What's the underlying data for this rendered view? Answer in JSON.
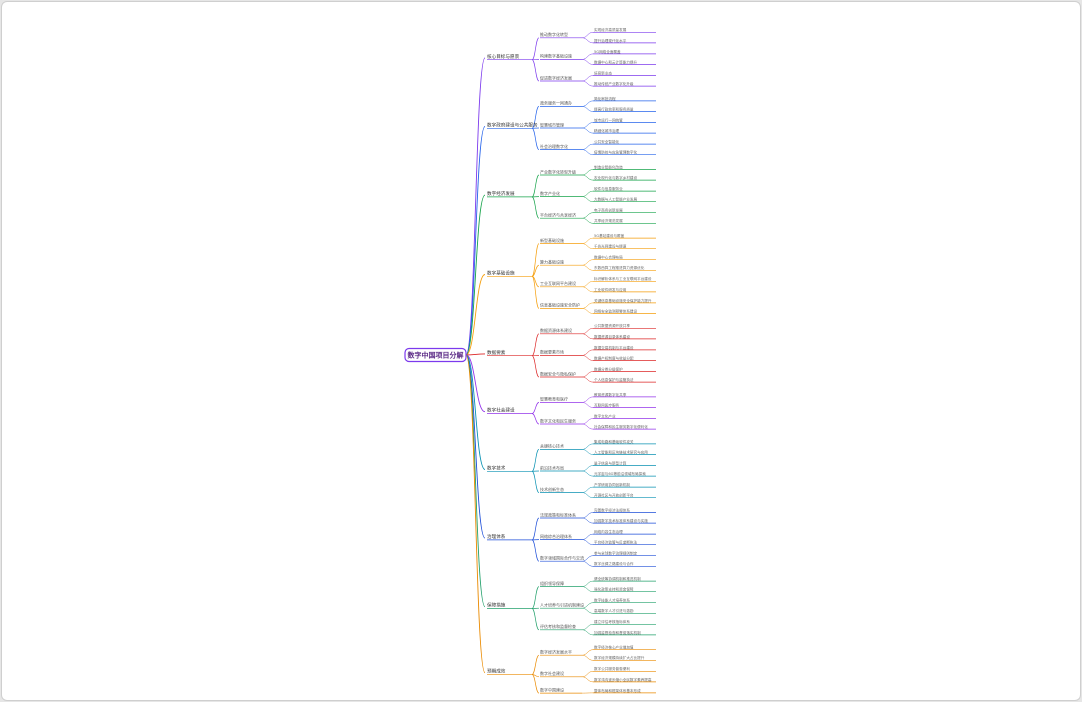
{
  "root": "数字中国项目分解",
  "branches": [
    {
      "label": "核心目标与愿景",
      "color": "#7c3aed",
      "children": [
        {
          "label": "推动数字化转型",
          "leaves": [
            "实现经济高质量发展",
            "提升治理现代化水平"
          ]
        },
        {
          "label": "构建数字基础设施",
          "leaves": [
            "5G网络全面覆盖",
            "数据中心和云计算能力提升"
          ]
        },
        {
          "label": "促进数字经济发展",
          "leaves": [
            "培育新业态",
            "推动传统产业数字化升级"
          ]
        }
      ]
    },
    {
      "label": "数字政府建设与公共服务",
      "color": "#2563eb",
      "children": [
        {
          "label": "政务服务一网通办",
          "leaves": [
            "简化审批流程",
            "提高行政效率和服务质量"
          ]
        },
        {
          "label": "智慧城市管理",
          "leaves": [
            "城市运行一网统管",
            "精细化城市治理"
          ]
        },
        {
          "label": "社会治理数字化",
          "leaves": [
            "公共安全智能化",
            "疫情防控与应急管理数字化"
          ]
        }
      ]
    },
    {
      "label": "数字经济发展",
      "color": "#16a34a",
      "children": [
        {
          "label": "产业数字化转型升级",
          "leaves": [
            "制造业智能化改造",
            "农业现代化与数字乡村建设"
          ]
        },
        {
          "label": "数字产业化",
          "leaves": [
            "软件与信息服务业",
            "大数据与人工智能产业发展"
          ]
        },
        {
          "label": "平台经济与共享经济",
          "leaves": [
            "电子商务创新发展",
            "共享经济规范发展"
          ]
        }
      ]
    },
    {
      "label": "数字基础设施",
      "color": "#f59e0b",
      "children": [
        {
          "label": "新型基础设施",
          "leaves": [
            "5G基站建设与覆盖",
            "千兆光网建设与提速"
          ]
        },
        {
          "label": "算力基础设施",
          "leaves": [
            "数据中心合理布局",
            "东数西算工程推进算力资源优化"
          ]
        },
        {
          "label": "工业互联网平台建设",
          "leaves": [
            "标识解析体系与工业互联网平台建设",
            "工业软件研发与应用"
          ]
        },
        {
          "label": "信息基础设施安全防护",
          "leaves": [
            "关键信息基础设施安全保护能力提升",
            "网络安全监测预警体系建设"
          ]
        }
      ]
    },
    {
      "label": "数据要素",
      "color": "#dc2626",
      "children": [
        {
          "label": "数据资源体系建设",
          "leaves": [
            "公共数据资源开放共享",
            "数据资源目录体系建设"
          ]
        },
        {
          "label": "数据要素市场",
          "leaves": [
            "数据交易机制与平台建设",
            "数据产权制度与收益分配"
          ]
        },
        {
          "label": "数据安全与隐私保护",
          "leaves": [
            "数据分类分级保护",
            "个人信息保护与监管执法"
          ]
        }
      ]
    },
    {
      "label": "数字社会建设",
      "color": "#9333ea",
      "children": [
        {
          "label": "智慧教育和医疗",
          "leaves": [
            "教育资源数字化共享",
            "互联网医疗服务"
          ]
        },
        {
          "label": "数字文化和民生服务",
          "leaves": [
            "数字文化产业",
            "社会保障和民生服务数字化便利化"
          ]
        }
      ]
    },
    {
      "label": "数字技术",
      "color": "#0891b2",
      "children": [
        {
          "label": "关键核心技术",
          "leaves": [
            "集成电路和基础软件攻关",
            "人工智能和区块链技术研究与应用"
          ]
        },
        {
          "label": "前沿技术布局",
          "leaves": [
            "量子信息与新型计算",
            "元宇宙与6G等前沿领域布局探索"
          ]
        },
        {
          "label": "技术创新生态",
          "leaves": [
            "产学研用协同创新机制",
            "开源社区与开放创新平台"
          ]
        }
      ]
    },
    {
      "label": "治理体系",
      "color": "#1d4ed8",
      "children": [
        {
          "label": "法规政策和标准体系",
          "leaves": [
            "完善数字经济法规体系",
            "加强数字技术标准体系建设与实施"
          ]
        },
        {
          "label": "网络综合治理体系",
          "leaves": [
            "网络内容生态治理",
            "平台经济监管与反垄断执法"
          ]
        },
        {
          "label": "数字领域国际合作与交流",
          "leaves": [
            "参与全球数字治理规则制定",
            "数字丝绸之路建设与合作"
          ]
        }
      ]
    },
    {
      "label": "保障措施",
      "color": "#22a06b",
      "children": [
        {
          "label": "组织领导保障",
          "leaves": [
            "健全统筹协调机制和推进机制",
            "强化政策支持和资金保障"
          ]
        },
        {
          "label": "人才培养与引进机制建设",
          "leaves": [
            "数字技能人才培养体系",
            "高端数字人才引进与激励"
          ]
        },
        {
          "label": "评估考核和监督检查",
          "leaves": [
            "建立评估考核指标体系",
            "加强监督检查和督促落实机制"
          ]
        }
      ]
    },
    {
      "label": "预期成效",
      "color": "#ea8a00",
      "children": [
        {
          "label": "数字经济发展水平",
          "leaves": [
            "数字经济核心产业增加值",
            "数字经济规模持续扩大占比提升"
          ]
        },
        {
          "label": "数字社会建设",
          "leaves": [
            "数字公共服务普惠便利",
            "数字鸿沟逐步缩小全民数字素养提高"
          ]
        },
        {
          "label": "数字中国建设",
          "leaves": [
            "整体布局和框架体系基本形成"
          ]
        }
      ]
    }
  ]
}
